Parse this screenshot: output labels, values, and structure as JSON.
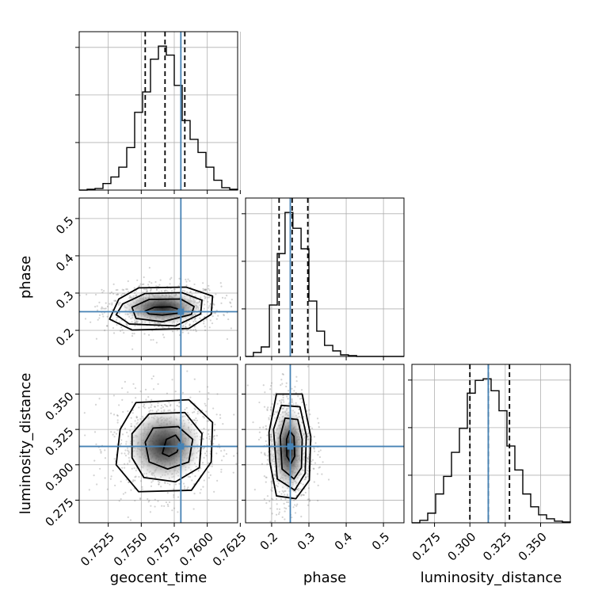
{
  "chart_data": {
    "type": "corner",
    "parameters": [
      "geocent_time",
      "phase",
      "luminosity_distance"
    ],
    "truths": [
      0.758,
      0.25,
      0.313
    ],
    "truth_color": "#4682b4",
    "quantiles": [
      [
        0.7553,
        0.7568,
        0.7583
      ],
      [
        0.22,
        0.255,
        0.297
      ],
      [
        0.3,
        0.313,
        0.328
      ]
    ],
    "ranges": [
      [
        0.7503,
        0.7623
      ],
      [
        0.13,
        0.555
      ],
      [
        0.259,
        0.371
      ]
    ],
    "ticks": [
      {
        "values": [
          0.7525,
          0.755,
          0.7575,
          0.76,
          0.7625
        ],
        "labels": [
          "0.7525",
          "0.7550",
          "0.7575",
          "0.7600",
          "0.7625"
        ]
      },
      {
        "values": [
          0.2,
          0.3,
          0.4,
          0.5
        ],
        "labels": [
          "0.2",
          "0.3",
          "0.4",
          "0.5"
        ]
      },
      {
        "values": [
          0.275,
          0.3,
          0.325,
          0.35
        ],
        "labels": [
          "0.275",
          "0.300",
          "0.325",
          "0.350"
        ]
      }
    ],
    "histograms": [
      {
        "parameter": "geocent_time",
        "bin_edges": [
          0.7503,
          0.7509,
          0.7515,
          0.7521,
          0.7527,
          0.7533,
          0.7539,
          0.7545,
          0.7551,
          0.7557,
          0.7563,
          0.7569,
          0.7575,
          0.7581,
          0.7587,
          0.7593,
          0.7599,
          0.7605,
          0.7611,
          0.7617,
          0.7623
        ],
        "counts": [
          0,
          1,
          2,
          8,
          16,
          28,
          52,
          95,
          120,
          160,
          176,
          165,
          128,
          85,
          62,
          46,
          28,
          12,
          3,
          1
        ]
      },
      {
        "parameter": "phase",
        "bin_edges": [
          0.13,
          0.151,
          0.172,
          0.194,
          0.215,
          0.236,
          0.257,
          0.279,
          0.3,
          0.321,
          0.342,
          0.364,
          0.385,
          0.406,
          0.428,
          0.449,
          0.47,
          0.491,
          0.512,
          0.534,
          0.555
        ],
        "counts": [
          0,
          5,
          12,
          65,
          130,
          182,
          162,
          136,
          70,
          32,
          14,
          7,
          2,
          1,
          0,
          0,
          0,
          0,
          0,
          0
        ]
      },
      {
        "parameter": "luminosity_distance",
        "bin_edges": [
          0.259,
          0.2646,
          0.2702,
          0.2758,
          0.2814,
          0.287,
          0.2926,
          0.2982,
          0.3038,
          0.3094,
          0.315,
          0.3206,
          0.3262,
          0.3318,
          0.3374,
          0.343,
          0.3486,
          0.3542,
          0.3598,
          0.3654,
          0.371
        ],
        "counts": [
          0,
          3,
          12,
          36,
          58,
          88,
          118,
          162,
          178,
          180,
          165,
          140,
          96,
          66,
          36,
          20,
          10,
          5,
          2,
          1
        ]
      }
    ],
    "pairs": [
      {
        "x": "geocent_time",
        "y": "phase",
        "peak": [
          0.7568,
          0.25
        ],
        "contours": [
          [
            [
              0.7553,
              0.252
            ],
            [
              0.756,
              0.262
            ],
            [
              0.7572,
              0.263
            ],
            [
              0.758,
              0.255
            ],
            [
              0.7578,
              0.246
            ],
            [
              0.7566,
              0.241
            ],
            [
              0.7556,
              0.244
            ]
          ],
          [
            [
              0.7543,
              0.262
            ],
            [
              0.7556,
              0.283
            ],
            [
              0.758,
              0.284
            ],
            [
              0.759,
              0.264
            ],
            [
              0.7588,
              0.243
            ],
            [
              0.7566,
              0.223
            ],
            [
              0.7546,
              0.232
            ]
          ],
          [
            [
              0.7536,
              0.271
            ],
            [
              0.7553,
              0.299
            ],
            [
              0.7581,
              0.301
            ],
            [
              0.7596,
              0.281
            ],
            [
              0.7595,
              0.244
            ],
            [
              0.7576,
              0.212
            ],
            [
              0.7541,
              0.217
            ],
            [
              0.7531,
              0.242
            ]
          ],
          [
            [
              0.7533,
              0.284
            ],
            [
              0.7548,
              0.314
            ],
            [
              0.7584,
              0.316
            ],
            [
              0.7604,
              0.292
            ],
            [
              0.7603,
              0.243
            ],
            [
              0.7586,
              0.205
            ],
            [
              0.7543,
              0.201
            ],
            [
              0.7526,
              0.23
            ]
          ]
        ]
      },
      {
        "x": "geocent_time",
        "y": "luminosity_distance",
        "peak": [
          0.757,
          0.31
        ],
        "contours": [
          [
            [
              0.7566,
              0.308
            ],
            [
              0.7569,
              0.318
            ],
            [
              0.7576,
              0.321
            ],
            [
              0.758,
              0.316
            ],
            [
              0.7577,
              0.309
            ],
            [
              0.7571,
              0.306
            ]
          ],
          [
            [
              0.7553,
              0.316
            ],
            [
              0.7559,
              0.326
            ],
            [
              0.7578,
              0.327
            ],
            [
              0.7589,
              0.318
            ],
            [
              0.7586,
              0.302
            ],
            [
              0.757,
              0.297
            ],
            [
              0.7556,
              0.302
            ]
          ],
          [
            [
              0.7543,
              0.322
            ],
            [
              0.7556,
              0.336
            ],
            [
              0.7583,
              0.337
            ],
            [
              0.7596,
              0.322
            ],
            [
              0.7594,
              0.298
            ],
            [
              0.7576,
              0.288
            ],
            [
              0.7552,
              0.291
            ],
            [
              0.7543,
              0.305
            ]
          ],
          [
            [
              0.7534,
              0.325
            ],
            [
              0.7546,
              0.344
            ],
            [
              0.7586,
              0.346
            ],
            [
              0.7604,
              0.33
            ],
            [
              0.7603,
              0.302
            ],
            [
              0.7588,
              0.282
            ],
            [
              0.7548,
              0.281
            ],
            [
              0.7531,
              0.3
            ]
          ]
        ]
      },
      {
        "x": "phase",
        "y": "luminosity_distance",
        "peak": [
          0.25,
          0.313
        ],
        "contours": [
          [
            [
              0.24,
              0.318
            ],
            [
              0.248,
              0.324
            ],
            [
              0.26,
              0.32
            ],
            [
              0.262,
              0.306
            ],
            [
              0.252,
              0.301
            ],
            [
              0.241,
              0.306
            ]
          ],
          [
            [
              0.223,
              0.32
            ],
            [
              0.236,
              0.333
            ],
            [
              0.27,
              0.332
            ],
            [
              0.282,
              0.318
            ],
            [
              0.28,
              0.298
            ],
            [
              0.26,
              0.29
            ],
            [
              0.228,
              0.297
            ]
          ],
          [
            [
              0.205,
              0.325
            ],
            [
              0.226,
              0.342
            ],
            [
              0.276,
              0.341
            ],
            [
              0.293,
              0.321
            ],
            [
              0.29,
              0.294
            ],
            [
              0.262,
              0.282
            ],
            [
              0.215,
              0.29
            ]
          ],
          [
            [
              0.193,
              0.323
            ],
            [
              0.213,
              0.35
            ],
            [
              0.282,
              0.35
            ],
            [
              0.305,
              0.32
            ],
            [
              0.301,
              0.289
            ],
            [
              0.265,
              0.276
            ],
            [
              0.213,
              0.278
            ],
            [
              0.195,
              0.302
            ]
          ]
        ]
      }
    ],
    "grid": true,
    "sample_color": "#808080"
  }
}
